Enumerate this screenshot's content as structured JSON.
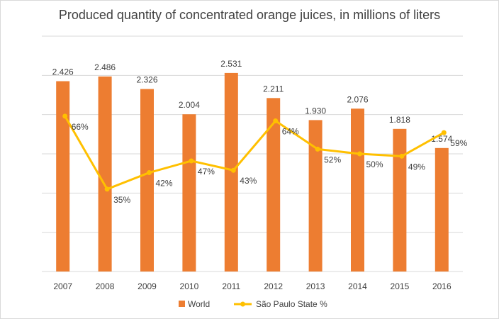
{
  "chart_data": {
    "type": "bar",
    "title": "Produced quantity of concentrated orange juices, in millions of liters",
    "categories": [
      "2007",
      "2008",
      "2009",
      "2010",
      "2011",
      "2012",
      "2013",
      "2014",
      "2015",
      "2016"
    ],
    "series": [
      {
        "name": "World",
        "type": "bar",
        "color": "#ed7d31",
        "values": [
          2426,
          2486,
          2326,
          2004,
          2531,
          2211,
          1930,
          2076,
          1818,
          1574
        ],
        "labels": [
          "2.426",
          "2.486",
          "2.326",
          "2.004",
          "2.531",
          "2.211",
          "1.930",
          "2.076",
          "1.818",
          "1.574"
        ]
      },
      {
        "name": "São Paulo State %",
        "type": "line",
        "color": "#ffc000",
        "values": [
          66,
          35,
          42,
          47,
          43,
          64,
          52,
          50,
          49,
          59
        ],
        "labels": [
          "66%",
          "35%",
          "42%",
          "47%",
          "43%",
          "64%",
          "52%",
          "50%",
          "49%",
          "59%"
        ]
      }
    ],
    "ylim": [
      0,
      3000
    ],
    "y2lim": [
      0,
      100
    ],
    "grid": true,
    "legend_position": "bottom"
  }
}
